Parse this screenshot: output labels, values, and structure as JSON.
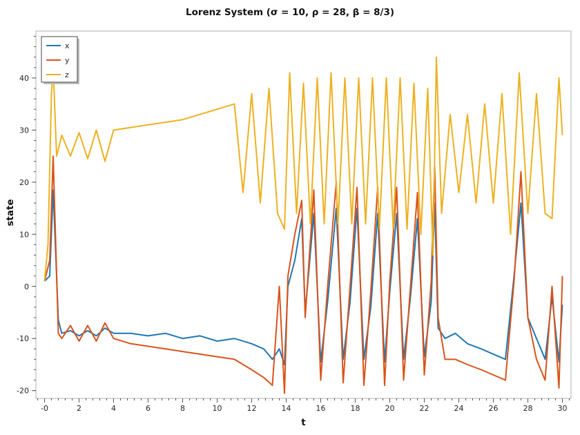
{
  "chart_data": {
    "type": "line",
    "title": "Lorenz System (σ = 10, ρ = 28, β = 8/3)",
    "xlabel": "t",
    "ylabel": "state",
    "xlim": [
      -0.5,
      30.5
    ],
    "ylim": [
      -21.5,
      49
    ],
    "xticks": [
      0,
      2,
      4,
      6,
      8,
      10,
      12,
      14,
      16,
      18,
      20,
      22,
      24,
      26,
      28,
      30
    ],
    "xtick_labels": [
      "-0",
      "2",
      "4",
      "6",
      "8",
      "10",
      "12",
      "14",
      "16",
      "18",
      "20",
      "22",
      "24",
      "26",
      "28",
      "30"
    ],
    "yticks": [
      -20,
      -10,
      0,
      10,
      20,
      30,
      40
    ],
    "yticks_minor_step": 2,
    "xticks_minor_step": 0.4,
    "legend_position": "top-left",
    "series": [
      {
        "name": "x",
        "color": "#1f77b4",
        "x": [
          0.0,
          0.3,
          0.5,
          0.8,
          1.0,
          1.5,
          2.0,
          2.5,
          3.0,
          3.5,
          4.0,
          5.0,
          6.0,
          7.0,
          8.0,
          9.0,
          10.0,
          11.0,
          12.0,
          12.7,
          13.2,
          13.6,
          13.9,
          14.1,
          14.5,
          14.9,
          15.1,
          15.6,
          16.0,
          16.4,
          16.9,
          17.3,
          17.7,
          18.1,
          18.5,
          18.9,
          19.3,
          19.7,
          20.0,
          20.4,
          20.8,
          21.2,
          21.6,
          22.0,
          22.4,
          22.6,
          22.8,
          23.2,
          23.8,
          24.5,
          25.3,
          26.0,
          26.7,
          27.2,
          27.6,
          28.0,
          28.5,
          29.0,
          29.4,
          29.8,
          30.0
        ],
        "y": [
          1.0,
          2.0,
          18.5,
          -6.5,
          -9.0,
          -8.5,
          -9.5,
          -8.5,
          -9.5,
          -8.0,
          -9.0,
          -9.0,
          -9.5,
          -9.0,
          -10.0,
          -9.5,
          -10.5,
          -10.0,
          -11.0,
          -12.0,
          -14.0,
          -12.0,
          -15.0,
          0.0,
          5.0,
          13.0,
          -5.0,
          14.0,
          -14.5,
          -3.0,
          15.0,
          -14.0,
          -3.0,
          15.0,
          -14.0,
          -4.0,
          14.0,
          -14.5,
          -1.0,
          14.0,
          -14.0,
          -2.0,
          13.0,
          -13.5,
          -3.0,
          16.0,
          -8.0,
          -10.0,
          -9.0,
          -11.0,
          -12.0,
          -13.0,
          -14.0,
          2.0,
          16.0,
          -6.0,
          -10.0,
          -14.0,
          -2.0,
          -14.5,
          -3.5
        ]
      },
      {
        "name": "y",
        "color": "#d95319",
        "x": [
          0.0,
          0.3,
          0.5,
          0.8,
          1.0,
          1.5,
          2.0,
          2.5,
          3.0,
          3.5,
          4.0,
          5.0,
          6.0,
          7.0,
          8.0,
          9.0,
          10.0,
          11.0,
          12.0,
          12.7,
          13.2,
          13.6,
          13.9,
          14.1,
          14.5,
          14.9,
          15.1,
          15.6,
          16.0,
          16.4,
          16.9,
          17.3,
          17.7,
          18.1,
          18.5,
          18.9,
          19.3,
          19.7,
          20.0,
          20.4,
          20.8,
          21.2,
          21.6,
          22.0,
          22.4,
          22.6,
          22.8,
          23.2,
          23.8,
          24.5,
          25.3,
          26.0,
          26.7,
          27.2,
          27.6,
          28.0,
          28.5,
          29.0,
          29.4,
          29.8,
          30.0
        ],
        "y": [
          1.0,
          5.0,
          25.0,
          -9.0,
          -10.0,
          -7.5,
          -10.5,
          -7.5,
          -10.5,
          -7.0,
          -10.0,
          -11.0,
          -11.5,
          -12.0,
          -12.5,
          -13.0,
          -13.5,
          -14.0,
          -16.0,
          -17.5,
          -19.0,
          0.0,
          -20.5,
          2.0,
          10.0,
          16.5,
          -6.0,
          18.5,
          -18.0,
          0.0,
          20.0,
          -18.5,
          0.0,
          19.0,
          -19.0,
          -1.0,
          19.0,
          -19.0,
          1.0,
          19.0,
          -18.0,
          0.0,
          18.0,
          -17.0,
          1.0,
          23.0,
          -6.0,
          -14.0,
          -14.0,
          -15.0,
          -16.0,
          -17.0,
          -18.0,
          1.0,
          22.0,
          -6.0,
          -14.0,
          -18.0,
          0.0,
          -19.5,
          2.0
        ]
      },
      {
        "name": "z",
        "color": "#edb120",
        "x": [
          0.0,
          0.2,
          0.4,
          0.5,
          0.7,
          1.0,
          1.5,
          2.0,
          2.5,
          3.0,
          3.5,
          4.0,
          5.0,
          6.0,
          7.0,
          8.0,
          9.0,
          10.0,
          11.0,
          11.5,
          12.0,
          12.5,
          13.0,
          13.5,
          13.9,
          14.2,
          14.6,
          15.0,
          15.4,
          15.8,
          16.2,
          16.6,
          17.0,
          17.4,
          17.8,
          18.2,
          18.6,
          19.0,
          19.4,
          19.8,
          20.2,
          20.6,
          21.0,
          21.4,
          21.8,
          22.2,
          22.5,
          22.7,
          23.0,
          23.5,
          24.0,
          24.5,
          25.0,
          25.5,
          26.0,
          26.5,
          27.0,
          27.5,
          28.0,
          28.5,
          29.0,
          29.4,
          29.8,
          30.0
        ],
        "y": [
          1.0,
          8.0,
          37.0,
          42.0,
          25.0,
          29.0,
          25.0,
          29.5,
          24.5,
          30.0,
          24.0,
          30.0,
          30.5,
          31.0,
          31.5,
          32.0,
          33.0,
          34.0,
          35.0,
          18.0,
          37.0,
          16.0,
          38.0,
          14.0,
          11.0,
          41.0,
          14.0,
          39.0,
          12.0,
          40.0,
          12.0,
          41.0,
          12.0,
          40.0,
          12.0,
          40.0,
          12.0,
          40.0,
          11.0,
          40.0,
          11.0,
          40.0,
          11.0,
          39.0,
          10.0,
          38.0,
          6.0,
          44.0,
          14.0,
          33.0,
          18.0,
          33.0,
          16.0,
          35.0,
          16.0,
          37.0,
          10.0,
          41.0,
          14.0,
          37.0,
          14.0,
          13.0,
          40.0,
          29.0
        ]
      }
    ]
  }
}
